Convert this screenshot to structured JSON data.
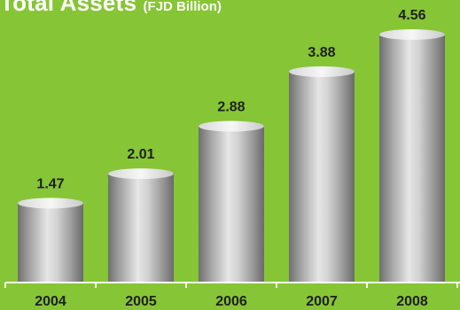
{
  "chart_data": {
    "type": "bar",
    "title": "Total Assets",
    "unit_label": "(FJD Billion)",
    "categories": [
      "2004",
      "2005",
      "2006",
      "2007",
      "2008"
    ],
    "values": [
      1.47,
      2.01,
      2.88,
      3.88,
      4.56
    ],
    "value_labels": [
      "1.47",
      "2.01",
      "2.88",
      "3.88",
      "4.56"
    ],
    "xlabel": "",
    "ylabel": "",
    "ylim": [
      0,
      4.56
    ],
    "grid": false,
    "colors": {
      "background": "#86c535",
      "bar_mid": "#e3e3e3",
      "bar_edge": "#7a7a7a",
      "axis": "#ffffff",
      "label": "#1f1f1f"
    }
  }
}
